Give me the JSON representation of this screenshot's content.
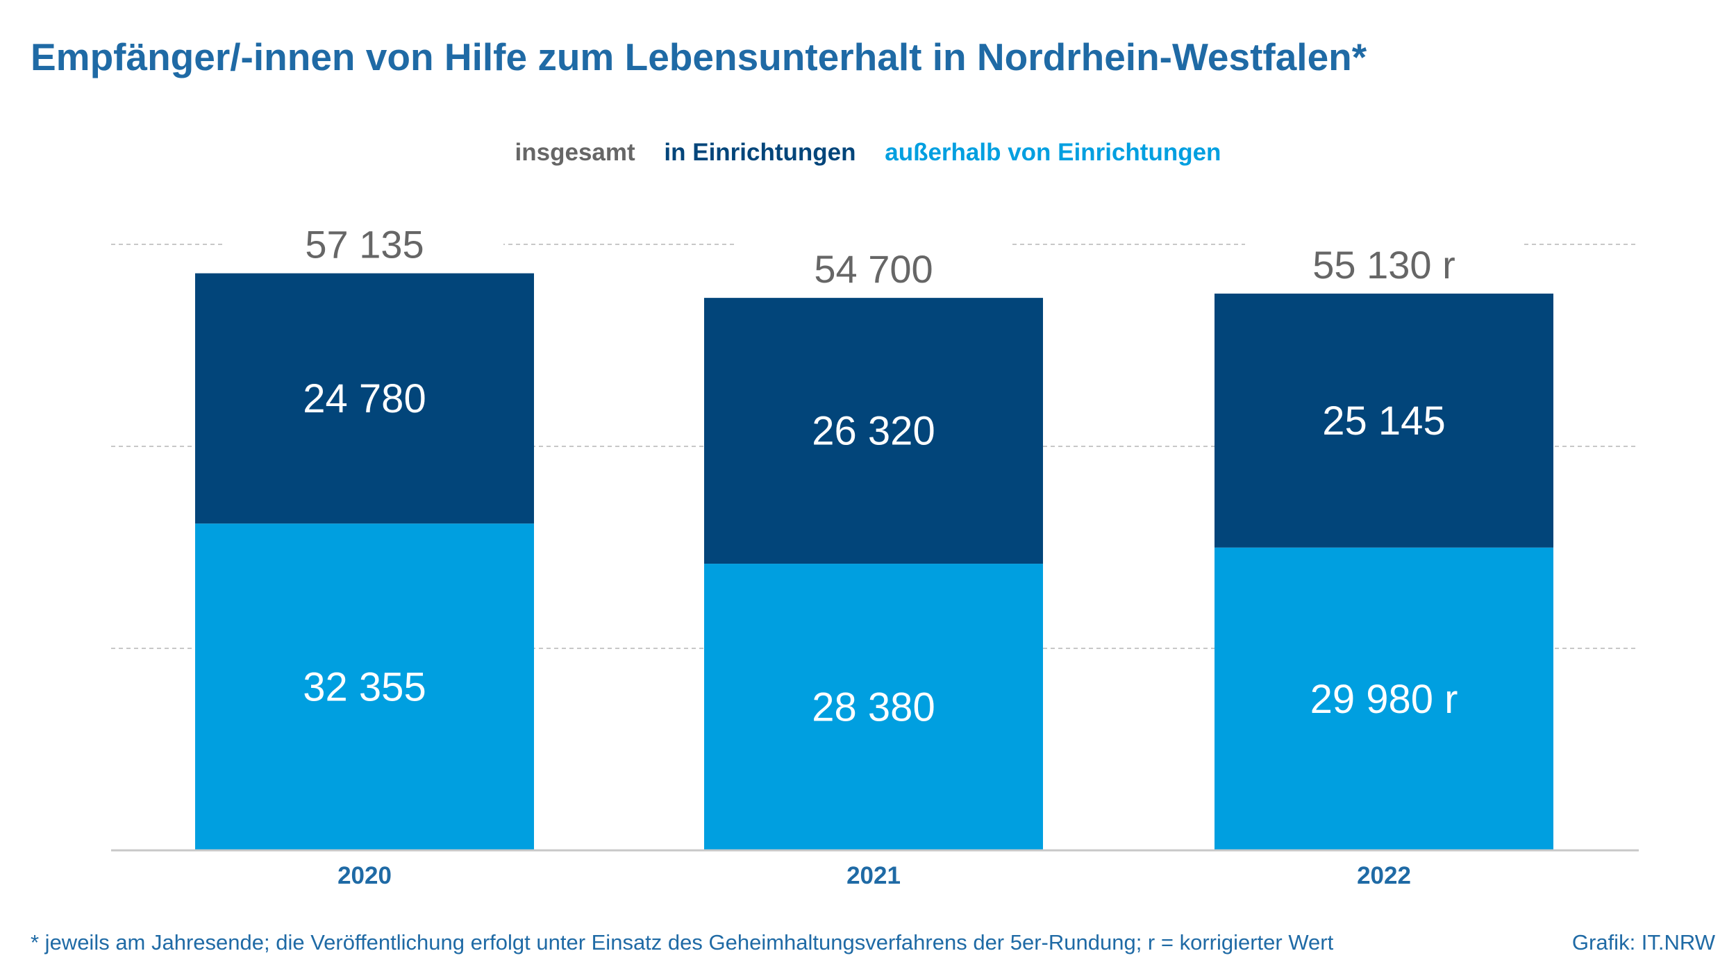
{
  "title": "Empfänger/-innen von Hilfe zum Lebensunterhalt in Nordrhein-Westfalen*",
  "footnote": "* jeweils am Jahresende; die Veröffentlichung erfolgt unter Einsatz des Geheimhaltungsverfahrens der 5er-Rundung; r = korrigierter Wert",
  "source": "Grafik: IT.NRW",
  "colors": {
    "insgesamt": "#666666",
    "in_einrichtungen": "#02457a",
    "ausserhalb": "#009fe0",
    "title": "#1f6aa5"
  },
  "chart_data": {
    "type": "bar",
    "stacked": true,
    "title": "Empfänger/-innen von Hilfe zum Lebensunterhalt in Nordrhein-Westfalen*",
    "categories": [
      "2020",
      "2021",
      "2022"
    ],
    "legend": {
      "placement": "top-center",
      "entries": [
        "insgesamt",
        "in Einrichtungen",
        "außerhalb von Einrichtungen"
      ]
    },
    "series": [
      {
        "name": "außerhalb von Einrichtungen",
        "values": [
          32355,
          28380,
          29980
        ],
        "labels": [
          "32 355",
          "28 380",
          "29 980 r"
        ],
        "color": "#009fe0"
      },
      {
        "name": "in Einrichtungen",
        "values": [
          24780,
          26320,
          25145
        ],
        "labels": [
          "24 780",
          "26 320",
          "25 145"
        ],
        "color": "#02457a"
      }
    ],
    "totals": {
      "name": "insgesamt",
      "values": [
        57135,
        54700,
        55130
      ],
      "labels": [
        "57 135",
        "54 700",
        "55 130 r"
      ],
      "color": "#666666"
    },
    "ylim": [
      0,
      60000
    ],
    "gridlines": [
      20000,
      40000,
      60000
    ],
    "grid": true
  }
}
